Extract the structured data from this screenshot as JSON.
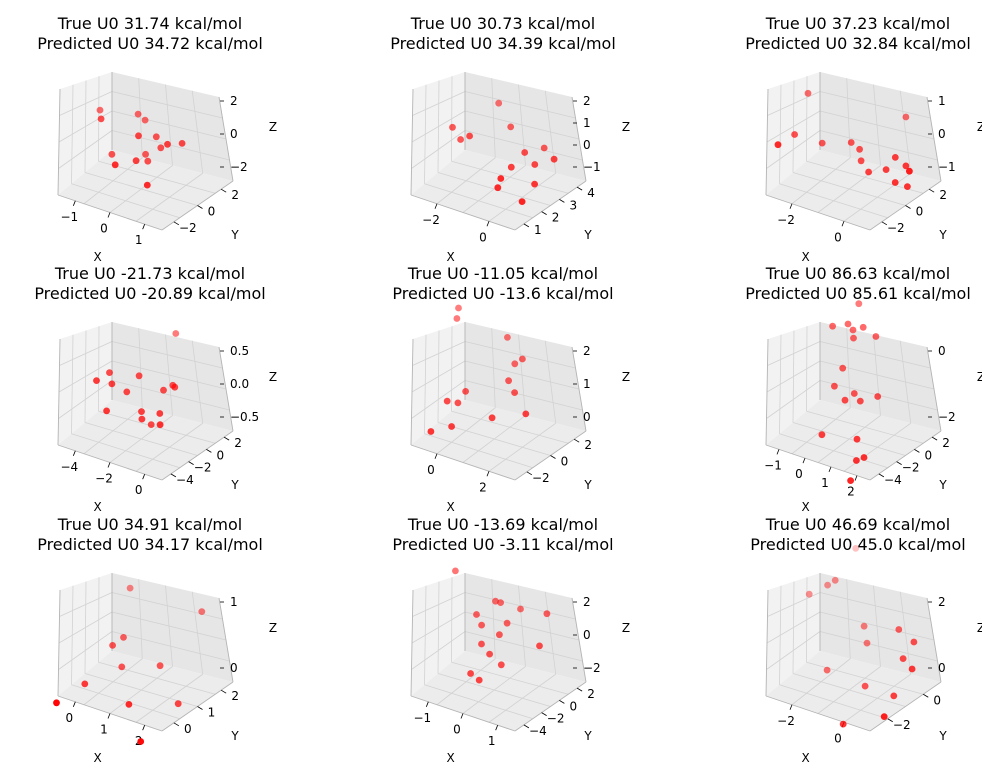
{
  "marker_color": "#ff0000",
  "pane_colors": {
    "floor": "#ececec",
    "back": "#f2f2f2",
    "side": "#e6e6e6",
    "grid": "#d2d2d2",
    "edge": "#b4b4b4"
  },
  "chart_data": [
    {
      "type": "scatter3d",
      "title": [
        "True U0 31.74 kcal/mol",
        "Predicted U0 34.72 kcal/mol"
      ],
      "xlabel": "X",
      "ylabel": "Y",
      "zlabel": "Z",
      "xticks": [
        "−1",
        "0",
        "1"
      ],
      "yticks": [
        "−2",
        "0",
        "2"
      ],
      "zticks": [
        "2",
        "0",
        "−2"
      ],
      "points": [
        {
          "x": -1.6,
          "y": 1.5,
          "z": 0.1
        },
        {
          "x": -0.3,
          "y": 1.3,
          "z": 0.8
        },
        {
          "x": -0.1,
          "y": 1.4,
          "z": 0.5
        },
        {
          "x": -1.2,
          "y": 0.1,
          "z": 0.4
        },
        {
          "x": 0.1,
          "y": -0.2,
          "z": 0.3
        },
        {
          "x": 0.5,
          "y": 0.5,
          "z": 0.2
        },
        {
          "x": 0.7,
          "y": 0.3,
          "z": -0.3
        },
        {
          "x": 1.1,
          "y": -0.4,
          "z": 0.5
        },
        {
          "x": 1.5,
          "y": -0.1,
          "z": 0.7
        },
        {
          "x": 0.1,
          "y": 0.7,
          "z": -1.3
        },
        {
          "x": 0.1,
          "y": -0.5,
          "z": -1.2
        },
        {
          "x": 0.3,
          "y": 0.2,
          "z": -1.4
        },
        {
          "x": -0.4,
          "y": -1.2,
          "z": -1.5
        },
        {
          "x": -0.9,
          "y": 0.3,
          "z": -1.8
        },
        {
          "x": 0.7,
          "y": -1.4,
          "z": -2.0
        }
      ]
    },
    {
      "type": "scatter3d",
      "title": [
        "True U0 30.73 kcal/mol",
        "Predicted U0 34.39 kcal/mol"
      ],
      "xlabel": "X",
      "ylabel": "Y",
      "zlabel": "Z",
      "xticks": [
        "−2",
        "0"
      ],
      "yticks": [
        "1",
        "2",
        "3",
        "4"
      ],
      "zticks": [
        "2",
        "1",
        "0",
        "−1"
      ],
      "points": [
        {
          "x": -1.2,
          "y": 3.9,
          "z": 1.5
        },
        {
          "x": -0.6,
          "y": 3.3,
          "z": 0.9
        },
        {
          "x": 0.6,
          "y": 3.0,
          "z": 0.6
        },
        {
          "x": -2.4,
          "y": 3.0,
          "z": 0.1
        },
        {
          "x": -2.1,
          "y": 2.9,
          "z": -0.3
        },
        {
          "x": -1.7,
          "y": 2.6,
          "z": 0.2
        },
        {
          "x": 0.1,
          "y": 2.6,
          "z": 0.3
        },
        {
          "x": 0.5,
          "y": 2.4,
          "z": 0.0
        },
        {
          "x": 1.2,
          "y": 2.2,
          "z": 0.7
        },
        {
          "x": -0.2,
          "y": 2.2,
          "z": -0.4
        },
        {
          "x": 0.7,
          "y": 1.8,
          "z": -0.6
        },
        {
          "x": -0.3,
          "y": 1.5,
          "z": -0.7
        },
        {
          "x": -0.4,
          "y": 1.5,
          "z": -1.2
        },
        {
          "x": 0.5,
          "y": 1.2,
          "z": -1.3
        }
      ]
    },
    {
      "type": "scatter3d",
      "title": [
        "True U0 37.23 kcal/mol",
        "Predicted U0 32.84 kcal/mol"
      ],
      "xlabel": "X",
      "ylabel": "Y",
      "zlabel": "Z",
      "xticks": [
        "−2",
        "0"
      ],
      "yticks": [
        "−2",
        "0",
        "2"
      ],
      "zticks": [
        "1",
        "0",
        "−1"
      ],
      "points": [
        {
          "x": -2.6,
          "y": 1.5,
          "z": 0.6
        },
        {
          "x": 0.6,
          "y": 1.5,
          "z": 0.9
        },
        {
          "x": -2.7,
          "y": 0.2,
          "z": -0.5
        },
        {
          "x": -1.9,
          "y": 0.6,
          "z": -0.6
        },
        {
          "x": -0.9,
          "y": 0.4,
          "z": -0.2
        },
        {
          "x": -0.6,
          "y": 0.3,
          "z": -0.3
        },
        {
          "x": -0.5,
          "y": 0.1,
          "z": -0.6
        },
        {
          "x": -0.1,
          "y": -0.5,
          "z": -0.7
        },
        {
          "x": 0.8,
          "y": -0.6,
          "z": 0.1
        },
        {
          "x": 1.2,
          "y": -0.8,
          "z": 0.0
        },
        {
          "x": 0.5,
          "y": -0.6,
          "z": -0.4
        },
        {
          "x": 1.3,
          "y": -1.0,
          "z": -0.6
        },
        {
          "x": 0.9,
          "y": -1.0,
          "z": -0.6
        },
        {
          "x": 1.6,
          "y": -1.9,
          "z": 0.2
        },
        {
          "x": -2.8,
          "y": -1.5,
          "z": -0.5
        }
      ]
    },
    {
      "type": "scatter3d",
      "title": [
        "True U0 -21.73 kcal/mol",
        "Predicted U0 -20.89 kcal/mol"
      ],
      "xlabel": "X",
      "ylabel": "Y",
      "zlabel": "Z",
      "xticks": [
        "−4",
        "−2",
        "0"
      ],
      "yticks": [
        "−4",
        "−2",
        "0",
        "2"
      ],
      "zticks": [
        "0.5",
        "0.0",
        "−0.5"
      ],
      "points": [
        {
          "x": -0.5,
          "y": 2.0,
          "z": 0.8
        },
        {
          "x": -4.3,
          "y": -2.0,
          "z": 0.0
        },
        {
          "x": -3.8,
          "y": -1.0,
          "z": 0.1
        },
        {
          "x": -3.4,
          "y": -1.7,
          "z": 0.0
        },
        {
          "x": -3.5,
          "y": -2.4,
          "z": -0.4
        },
        {
          "x": -2.6,
          "y": -1.2,
          "z": -0.1
        },
        {
          "x": -1.9,
          "y": -0.9,
          "z": 0.2
        },
        {
          "x": -1.5,
          "y": -1.6,
          "z": -0.3
        },
        {
          "x": -1.4,
          "y": -1.8,
          "z": -0.4
        },
        {
          "x": -1.0,
          "y": -1.2,
          "z": -0.5
        },
        {
          "x": -0.3,
          "y": -0.9,
          "z": 0.1
        },
        {
          "x": 0.2,
          "y": -0.6,
          "z": 0.2
        },
        {
          "x": 0.4,
          "y": -0.8,
          "z": 0.2
        },
        {
          "x": -0.2,
          "y": -1.9,
          "z": -0.2
        },
        {
          "x": 0.1,
          "y": -2.7,
          "z": -0.3
        }
      ]
    },
    {
      "type": "scatter3d",
      "title": [
        "True U0 -11.05 kcal/mol",
        "Predicted U0 -13.6 kcal/mol"
      ],
      "xlabel": "X",
      "ylabel": "Y",
      "zlabel": "Z",
      "xticks": [
        "0",
        "2"
      ],
      "yticks": [
        "−2",
        "0",
        "2"
      ],
      "zticks": [
        "2",
        "1",
        "0"
      ],
      "points": [
        {
          "x": -0.6,
          "y": 2.2,
          "z": 2.6
        },
        {
          "x": -0.6,
          "y": 2.0,
          "z": 2.3
        },
        {
          "x": 1.1,
          "y": 1.8,
          "z": 2.3
        },
        {
          "x": 1.8,
          "y": 1.0,
          "z": 2.0
        },
        {
          "x": 1.5,
          "y": 1.2,
          "z": 1.7
        },
        {
          "x": 1.4,
          "y": 0.8,
          "z": 1.2
        },
        {
          "x": 1.7,
          "y": 0.4,
          "z": 1.0
        },
        {
          "x": 2.3,
          "y": -0.5,
          "z": 0.7
        },
        {
          "x": 1.2,
          "y": -0.5,
          "z": 0.2
        },
        {
          "x": 0.1,
          "y": 0.4,
          "z": 0.5
        },
        {
          "x": -0.1,
          "y": 0.2,
          "z": 0.1
        },
        {
          "x": -0.4,
          "y": 0.0,
          "z": 0.1
        },
        {
          "x": -0.1,
          "y": -0.6,
          "z": -0.5
        },
        {
          "x": -0.7,
          "y": -0.9,
          "z": -0.8
        }
      ]
    },
    {
      "type": "scatter3d",
      "title": [
        "True U0 86.63 kcal/mol",
        "Predicted U0 85.61 kcal/mol"
      ],
      "xlabel": "X",
      "ylabel": "Y",
      "zlabel": "Z",
      "xticks": [
        "−1",
        "0",
        "1",
        "2"
      ],
      "yticks": [
        "−4",
        "−2",
        "0",
        "2"
      ],
      "zticks": [
        "0",
        "−2"
      ],
      "points": [
        {
          "x": 0.4,
          "y": 2.0,
          "z": 1.3
        },
        {
          "x": -0.6,
          "y": 0.9,
          "z": 0.5
        },
        {
          "x": 0.1,
          "y": 1.1,
          "z": 0.7
        },
        {
          "x": 0.4,
          "y": 0.9,
          "z": 0.6
        },
        {
          "x": 0.5,
          "y": 0.6,
          "z": 0.4
        },
        {
          "x": 0.9,
          "y": 0.9,
          "z": 0.8
        },
        {
          "x": 1.6,
          "y": 0.6,
          "z": 0.7
        },
        {
          "x": 0.1,
          "y": 0.1,
          "z": -0.6
        },
        {
          "x": -0.2,
          "y": -0.3,
          "z": -1.2
        },
        {
          "x": 0.8,
          "y": -0.4,
          "z": -1.2
        },
        {
          "x": 1.2,
          "y": -0.8,
          "z": -1.3
        },
        {
          "x": 0.5,
          "y": -1.0,
          "z": -1.4
        },
        {
          "x": 2.0,
          "y": -0.6,
          "z": -1.0
        },
        {
          "x": -0.4,
          "y": -1.9,
          "z": -2.6
        },
        {
          "x": 1.4,
          "y": -2.2,
          "z": -2.3
        },
        {
          "x": 1.5,
          "y": -2.7,
          "z": -2.9
        },
        {
          "x": 1.9,
          "y": -2.8,
          "z": -2.7
        },
        {
          "x": 1.5,
          "y": -3.8,
          "z": -3.4
        }
      ]
    },
    {
      "type": "scatter3d",
      "title": [
        "True U0 34.91 kcal/mol",
        "Predicted U0 34.17 kcal/mol"
      ],
      "xlabel": "X",
      "ylabel": "Y",
      "zlabel": "Z",
      "xticks": [
        "0",
        "1",
        "2"
      ],
      "yticks": [
        "0",
        "1",
        "2"
      ],
      "zticks": [
        "1",
        "0"
      ],
      "points": [
        {
          "x": 0.1,
          "y": 2.3,
          "z": 0.9
        },
        {
          "x": 2.6,
          "y": 2.0,
          "z": 1.0
        },
        {
          "x": 0.3,
          "y": 1.5,
          "z": 0.3
        },
        {
          "x": 0.1,
          "y": 1.2,
          "z": 0.2
        },
        {
          "x": 0.4,
          "y": 1.2,
          "z": -0.1
        },
        {
          "x": 1.6,
          "y": 1.3,
          "z": 0.1
        },
        {
          "x": -0.5,
          "y": 0.6,
          "z": -0.4
        },
        {
          "x": 1.1,
          "y": 0.3,
          "z": -0.4
        },
        {
          "x": 2.4,
          "y": 0.9,
          "z": -0.3
        },
        {
          "x": -0.8,
          "y": -0.6,
          "z": -0.5
        },
        {
          "x": 1.9,
          "y": -0.5,
          "z": -0.7
        }
      ]
    },
    {
      "type": "scatter3d",
      "title": [
        "True U0 -13.69 kcal/mol",
        "Predicted U0 -3.11 kcal/mol"
      ],
      "xlabel": "X",
      "ylabel": "Y",
      "zlabel": "Z",
      "xticks": [
        "−1",
        "0",
        "1"
      ],
      "yticks": [
        "−4",
        "−2",
        "0",
        "2"
      ],
      "zticks": [
        "2",
        "0",
        "−2"
      ],
      "points": [
        {
          "x": -1.6,
          "y": 1.7,
          "z": 2.6
        },
        {
          "x": -0.2,
          "y": 1.2,
          "z": 1.7
        },
        {
          "x": 0.0,
          "y": 1.0,
          "z": 1.8
        },
        {
          "x": 0.6,
          "y": 1.3,
          "z": 1.7
        },
        {
          "x": 1.6,
          "y": 0.5,
          "z": 2.3
        },
        {
          "x": -0.7,
          "y": 0.5,
          "z": 0.7
        },
        {
          "x": 0.3,
          "y": 0.5,
          "z": 0.8
        },
        {
          "x": -0.5,
          "y": 0.3,
          "z": 0.2
        },
        {
          "x": 0.1,
          "y": 0.2,
          "z": 0.0
        },
        {
          "x": 1.6,
          "y": -0.9,
          "z": 0.6
        },
        {
          "x": -0.4,
          "y": -0.3,
          "z": -0.8
        },
        {
          "x": -0.1,
          "y": -0.5,
          "z": -1.2
        },
        {
          "x": 0.3,
          "y": -0.6,
          "z": -1.6
        },
        {
          "x": -0.6,
          "y": -1.2,
          "z": -2.6
        },
        {
          "x": -0.3,
          "y": -1.3,
          "z": -2.8
        }
      ]
    },
    {
      "type": "scatter3d",
      "title": [
        "True U0 46.69 kcal/mol",
        "Predicted U0 45.0 kcal/mol"
      ],
      "xlabel": "X",
      "ylabel": "Y",
      "zlabel": "Z",
      "xticks": [
        "−2",
        "0"
      ],
      "yticks": [
        "−2",
        "0"
      ],
      "zticks": [
        "2",
        "0"
      ],
      "points": [
        {
          "x": -2.0,
          "y": 1.6,
          "z": 2.5
        },
        {
          "x": -3.0,
          "y": 0.6,
          "z": 1.1
        },
        {
          "x": -2.4,
          "y": 0.6,
          "z": 1.6
        },
        {
          "x": -2.1,
          "y": 0.5,
          "z": 1.9
        },
        {
          "x": -1.0,
          "y": 0.2,
          "z": 0.9
        },
        {
          "x": -0.8,
          "y": 0.0,
          "z": 0.5
        },
        {
          "x": 0.5,
          "y": -0.5,
          "z": 1.6
        },
        {
          "x": 0.9,
          "y": -1.0,
          "z": 1.0
        },
        {
          "x": 1.2,
          "y": -0.9,
          "z": 1.6
        },
        {
          "x": 1.4,
          "y": -1.4,
          "z": 1.0
        },
        {
          "x": -2.0,
          "y": -0.2,
          "z": -0.7
        },
        {
          "x": -0.5,
          "y": -0.7,
          "z": -0.5
        },
        {
          "x": 0.7,
          "y": -1.2,
          "z": -0.2
        },
        {
          "x": 0.8,
          "y": -2.0,
          "z": -0.5
        },
        {
          "x": -0.8,
          "y": -1.5,
          "z": -1.5
        }
      ]
    }
  ]
}
